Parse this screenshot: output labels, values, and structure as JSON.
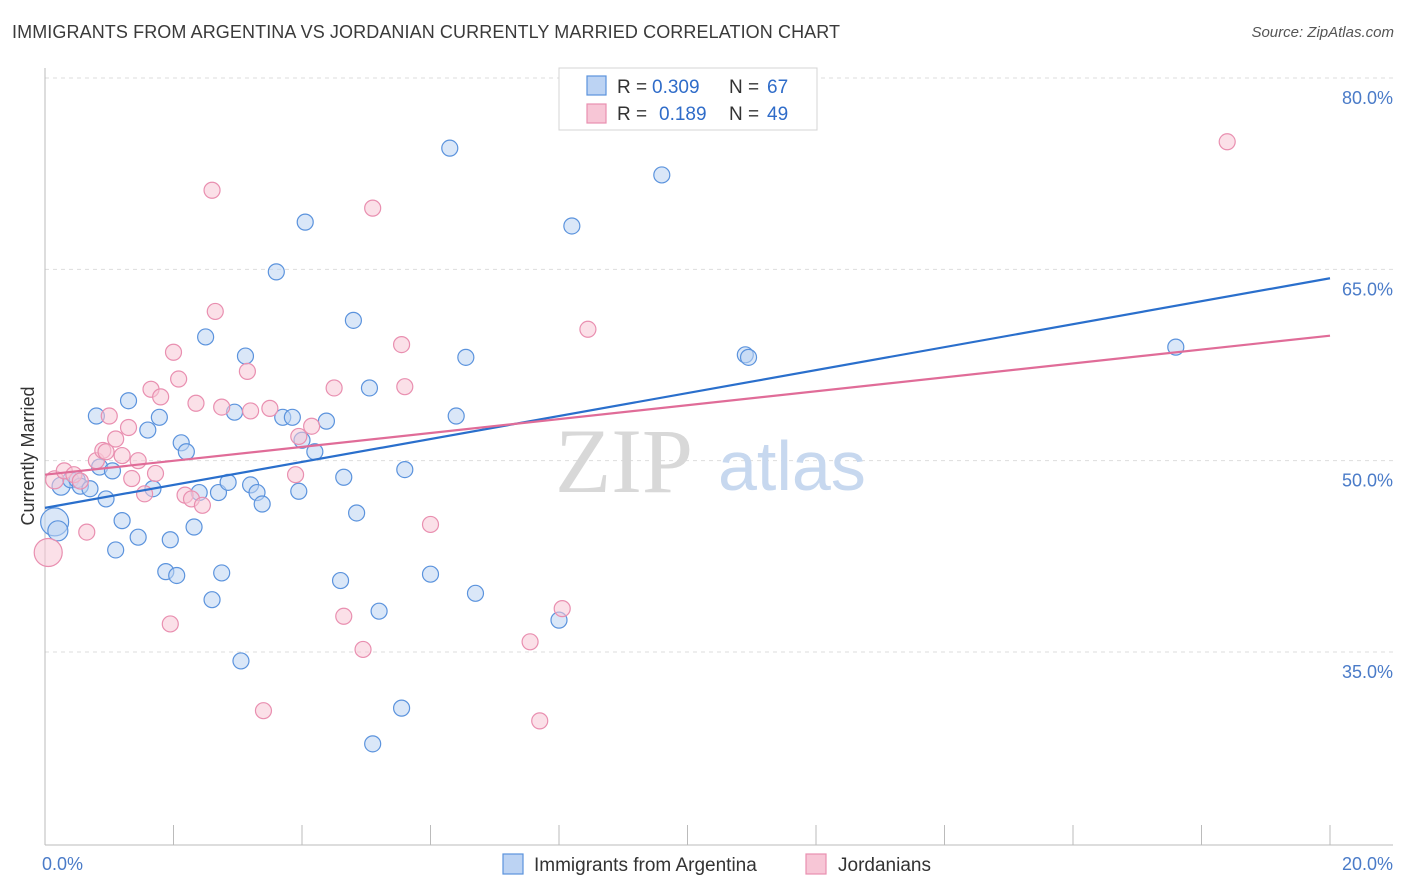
{
  "title": "IMMIGRANTS FROM ARGENTINA VS JORDANIAN CURRENTLY MARRIED CORRELATION CHART",
  "source": "Source: ZipAtlas.com",
  "watermark": {
    "zip": "ZIP",
    "atlas": "atlas"
  },
  "colors": {
    "blue": "#5b93dd",
    "blue_fill": "#bcd3f3",
    "blue_line": "#2a6fcc",
    "pink": "#e98fb0",
    "pink_fill": "#f7c6d6",
    "pink_line": "#e06c98",
    "grid": "#dddddd",
    "tick_label": "#4a7bc8"
  },
  "legend": {
    "rows": [
      {
        "r_label": "R =",
        "r_value": "0.309",
        "n_label": "N =",
        "n_value": "67"
      },
      {
        "r_label": "R =",
        "r_value": "0.189",
        "n_label": "N =",
        "n_value": "49"
      }
    ]
  },
  "chart_data": {
    "type": "scatter",
    "title": "IMMIGRANTS FROM ARGENTINA VS JORDANIAN CURRENTLY MARRIED CORRELATION CHART",
    "xlabel": "",
    "ylabel": "Currently Married",
    "xlim": [
      0,
      20
    ],
    "ylim": [
      20,
      82
    ],
    "x_tick_labels": [
      "0.0%",
      "20.0%"
    ],
    "x_ticks": [
      0,
      20
    ],
    "y_tick_labels": [
      "35.0%",
      "50.0%",
      "65.0%",
      "80.0%"
    ],
    "y_ticks": [
      35,
      50,
      65,
      80
    ],
    "grid": true,
    "legend_position": "bottom",
    "series": [
      {
        "name": "Immigrants from Argentina",
        "color": "#5b93dd",
        "trend": [
          [
            0,
            46.3
          ],
          [
            20,
            64.3
          ]
        ],
        "points": [
          [
            0.15,
            45.2,
            14
          ],
          [
            0.2,
            44.5,
            10
          ],
          [
            0.25,
            48.0,
            9
          ],
          [
            0.4,
            48.5,
            8
          ],
          [
            0.5,
            48.5,
            8
          ],
          [
            0.55,
            48.0,
            8
          ],
          [
            0.7,
            47.8,
            8
          ],
          [
            0.8,
            53.5,
            8
          ],
          [
            0.85,
            49.5,
            8
          ],
          [
            0.95,
            47.0,
            8
          ],
          [
            1.05,
            49.2,
            8
          ],
          [
            1.1,
            43.0,
            8
          ],
          [
            1.2,
            45.3,
            8
          ],
          [
            1.3,
            54.7,
            8
          ],
          [
            1.45,
            44.0,
            8
          ],
          [
            1.6,
            52.4,
            8
          ],
          [
            1.68,
            47.8,
            8
          ],
          [
            1.78,
            53.4,
            8
          ],
          [
            1.88,
            41.3,
            8
          ],
          [
            1.95,
            43.8,
            8
          ],
          [
            2.05,
            41.0,
            8
          ],
          [
            2.12,
            51.4,
            8
          ],
          [
            2.2,
            50.7,
            8
          ],
          [
            2.32,
            44.8,
            8
          ],
          [
            2.4,
            47.5,
            8
          ],
          [
            2.5,
            59.7,
            8
          ],
          [
            2.6,
            39.1,
            8
          ],
          [
            2.7,
            47.5,
            8
          ],
          [
            2.75,
            41.2,
            8
          ],
          [
            2.85,
            48.3,
            8
          ],
          [
            2.95,
            53.8,
            8
          ],
          [
            3.05,
            34.3,
            8
          ],
          [
            3.12,
            58.2,
            8
          ],
          [
            3.2,
            48.1,
            8
          ],
          [
            3.3,
            47.5,
            8
          ],
          [
            3.38,
            46.6,
            8
          ],
          [
            3.6,
            64.8,
            8
          ],
          [
            3.7,
            53.4,
            8
          ],
          [
            3.85,
            53.4,
            8
          ],
          [
            3.95,
            47.6,
            8
          ],
          [
            4.0,
            51.6,
            8
          ],
          [
            4.05,
            68.7,
            8
          ],
          [
            4.2,
            50.7,
            8
          ],
          [
            4.38,
            53.1,
            8
          ],
          [
            4.6,
            40.6,
            8
          ],
          [
            4.65,
            48.7,
            8
          ],
          [
            4.8,
            61.0,
            8
          ],
          [
            4.85,
            45.9,
            8
          ],
          [
            5.05,
            55.7,
            8
          ],
          [
            5.1,
            27.8,
            8
          ],
          [
            5.2,
            38.2,
            8
          ],
          [
            5.55,
            30.6,
            8
          ],
          [
            5.6,
            49.3,
            8
          ],
          [
            6.0,
            41.1,
            8
          ],
          [
            6.3,
            74.5,
            8
          ],
          [
            6.4,
            53.5,
            8
          ],
          [
            6.55,
            58.1,
            8
          ],
          [
            6.7,
            39.6,
            8
          ],
          [
            8.0,
            37.5,
            8
          ],
          [
            8.2,
            68.4,
            8
          ],
          [
            9.6,
            72.4,
            8
          ],
          [
            10.9,
            58.3,
            8
          ],
          [
            10.95,
            58.1,
            8
          ],
          [
            17.6,
            58.9,
            8
          ]
        ]
      },
      {
        "name": "Jordanians",
        "color": "#e98fb0",
        "trend": [
          [
            0,
            48.9
          ],
          [
            20,
            59.8
          ]
        ],
        "points": [
          [
            0.05,
            42.8,
            14
          ],
          [
            0.15,
            48.5,
            9
          ],
          [
            0.3,
            49.2,
            8
          ],
          [
            0.45,
            48.9,
            8
          ],
          [
            0.55,
            48.4,
            8
          ],
          [
            0.65,
            44.4,
            8
          ],
          [
            0.8,
            50.0,
            8
          ],
          [
            0.9,
            50.8,
            8
          ],
          [
            0.95,
            50.7,
            8
          ],
          [
            1.0,
            53.5,
            8
          ],
          [
            1.1,
            51.7,
            8
          ],
          [
            1.2,
            50.4,
            8
          ],
          [
            1.3,
            52.6,
            8
          ],
          [
            1.35,
            48.6,
            8
          ],
          [
            1.45,
            50.0,
            8
          ],
          [
            1.55,
            47.4,
            8
          ],
          [
            1.65,
            55.6,
            8
          ],
          [
            1.72,
            49.0,
            8
          ],
          [
            1.8,
            55.0,
            8
          ],
          [
            1.95,
            37.2,
            8
          ],
          [
            2.0,
            58.5,
            8
          ],
          [
            2.08,
            56.4,
            8
          ],
          [
            2.18,
            47.3,
            8
          ],
          [
            2.28,
            47.0,
            8
          ],
          [
            2.35,
            54.5,
            8
          ],
          [
            2.45,
            46.5,
            8
          ],
          [
            2.6,
            71.2,
            8
          ],
          [
            2.65,
            61.7,
            8
          ],
          [
            2.75,
            54.2,
            8
          ],
          [
            3.15,
            57.0,
            8
          ],
          [
            3.2,
            53.9,
            8
          ],
          [
            3.4,
            30.4,
            8
          ],
          [
            3.5,
            54.1,
            8
          ],
          [
            3.9,
            48.9,
            8
          ],
          [
            3.95,
            51.9,
            8
          ],
          [
            4.15,
            52.7,
            8
          ],
          [
            4.5,
            55.7,
            8
          ],
          [
            4.65,
            37.8,
            8
          ],
          [
            4.95,
            35.2,
            8
          ],
          [
            5.1,
            69.8,
            8
          ],
          [
            5.55,
            59.1,
            8
          ],
          [
            5.6,
            55.8,
            8
          ],
          [
            6.0,
            45.0,
            8
          ],
          [
            7.55,
            35.8,
            8
          ],
          [
            7.7,
            29.6,
            8
          ],
          [
            8.05,
            38.4,
            8
          ],
          [
            8.45,
            60.3,
            8
          ],
          [
            18.4,
            75.0,
            8
          ]
        ]
      }
    ]
  },
  "bottom_legend": [
    {
      "label": "Immigrants from Argentina"
    },
    {
      "label": "Jordanians"
    }
  ]
}
